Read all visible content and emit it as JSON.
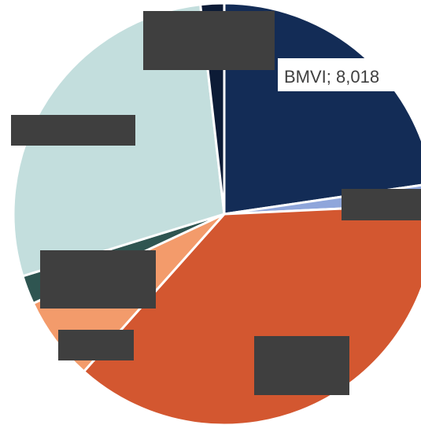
{
  "chart_data": {
    "type": "pie",
    "slices": [
      {
        "label": "",
        "value": 8018,
        "color": "#132c56",
        "data_label": "BMVI; 8,018"
      },
      {
        "label": "",
        "value": 560,
        "color": "#8fa6db",
        "data_label": ""
      },
      {
        "label": "",
        "value": 13200,
        "color": "#d35730",
        "data_label": ""
      },
      {
        "label": "",
        "value": 2280,
        "color": "#f39b6b",
        "data_label": ""
      },
      {
        "label": "",
        "value": 780,
        "color": "#2f5551",
        "data_label": ""
      },
      {
        "label": "",
        "value": 9880,
        "color": "#c3dedd",
        "data_label": ""
      },
      {
        "label": "",
        "value": 640,
        "color": "#0c1b36",
        "data_label": ""
      }
    ],
    "legend": "none",
    "title": ""
  }
}
